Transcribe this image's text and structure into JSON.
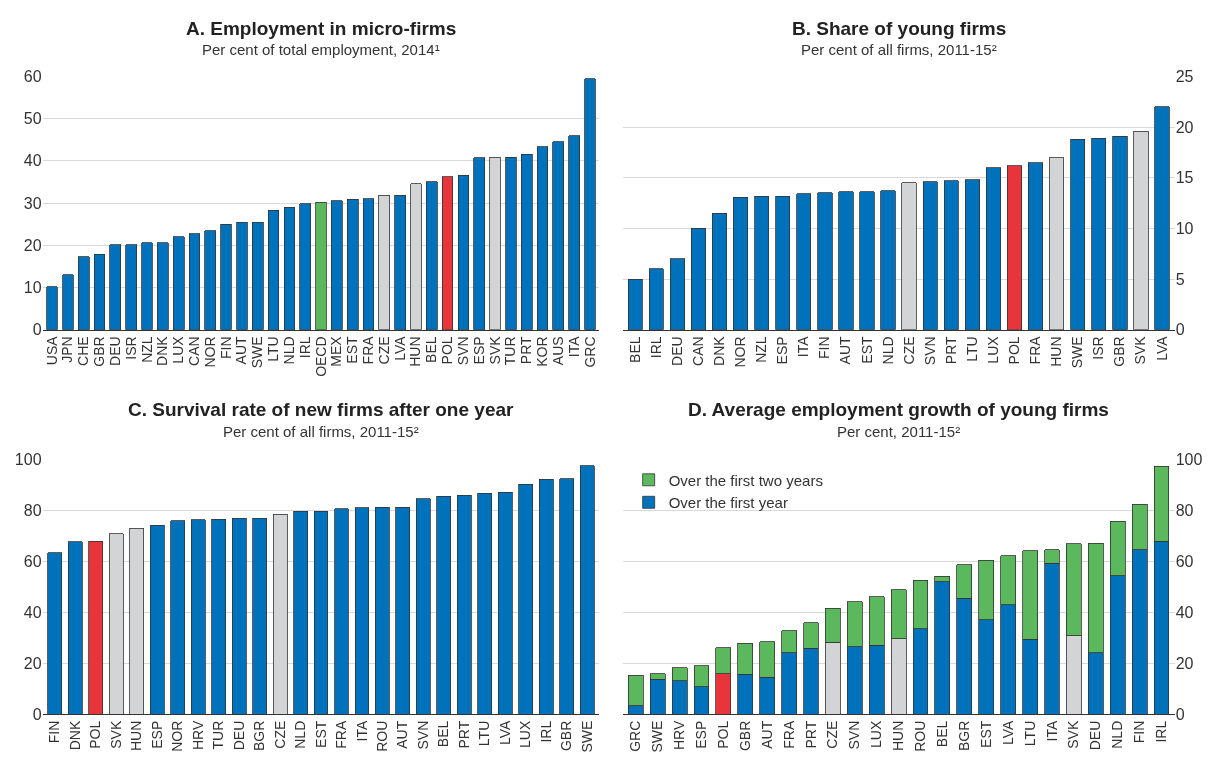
{
  "chart_data": [
    {
      "type": "bar",
      "title": "A. Employment in micro-firms",
      "subtitle": "Per cent of total employment, 2014¹",
      "categories": [
        "USA",
        "JPN",
        "CHE",
        "GBR",
        "DEU",
        "ISR",
        "NZL",
        "DNK",
        "LUX",
        "CAN",
        "NOR",
        "FIN",
        "AUT",
        "SWE",
        "LTU",
        "NLD",
        "IRL",
        "OECD",
        "MEX",
        "EST",
        "FRA",
        "CZE",
        "LVA",
        "HUN",
        "BEL",
        "POL",
        "SVN",
        "ESP",
        "SVK",
        "TUR",
        "PRT",
        "KOR",
        "AUS",
        "ITA",
        "GRC"
      ],
      "values": [
        10.2,
        13,
        17.3,
        17.9,
        20.1,
        20.1,
        20.6,
        20.6,
        22,
        22.7,
        23.4,
        25,
        25.5,
        25.5,
        28.3,
        29,
        29.8,
        30.2,
        30.6,
        30.9,
        31,
        31.8,
        31.8,
        34.6,
        35,
        36.2,
        36.6,
        40.7,
        40.9,
        40.9,
        41.6,
        43.4,
        44.5,
        45.9,
        59.4
      ],
      "colors": [
        "#0072bb",
        "#0072bb",
        "#0072bb",
        "#0072bb",
        "#0072bb",
        "#0072bb",
        "#0072bb",
        "#0072bb",
        "#0072bb",
        "#0072bb",
        "#0072bb",
        "#0072bb",
        "#0072bb",
        "#0072bb",
        "#0072bb",
        "#0072bb",
        "#0072bb",
        "#5cb85c",
        "#0072bb",
        "#0072bb",
        "#0072bb",
        "#d3d4d6",
        "#0072bb",
        "#d3d4d6",
        "#0072bb",
        "#e8353b",
        "#0072bb",
        "#0072bb",
        "#d3d4d6",
        "#0072bb",
        "#0072bb",
        "#0072bb",
        "#0072bb",
        "#0072bb",
        "#0072bb"
      ],
      "ylim": [
        0,
        60
      ],
      "yticks": [
        0,
        10,
        20,
        30,
        40,
        50,
        60
      ],
      "grid": "y",
      "legend": false
    },
    {
      "type": "bar",
      "title": "B. Share of young firms",
      "subtitle": "Per cent of all firms, 2011-15²",
      "categories": [
        "BEL",
        "IRL",
        "DEU",
        "CAN",
        "DNK",
        "NOR",
        "NZL",
        "ESP",
        "ITA",
        "FIN",
        "AUT",
        "EST",
        "NLD",
        "CZE",
        "SVN",
        "PRT",
        "LTU",
        "LUX",
        "POL",
        "FRA",
        "HUN",
        "SWE",
        "ISR",
        "GBR",
        "SVK",
        "LVA"
      ],
      "values": [
        5,
        6,
        7,
        10,
        11.5,
        13.1,
        13.2,
        13.2,
        13.4,
        13.5,
        13.6,
        13.6,
        13.7,
        14.5,
        14.6,
        14.7,
        14.8,
        16,
        16.2,
        16.5,
        17,
        18.8,
        18.9,
        19.1,
        19.6,
        22
      ],
      "colors": [
        "#0072bb",
        "#0072bb",
        "#0072bb",
        "#0072bb",
        "#0072bb",
        "#0072bb",
        "#0072bb",
        "#0072bb",
        "#0072bb",
        "#0072bb",
        "#0072bb",
        "#0072bb",
        "#0072bb",
        "#d3d4d6",
        "#0072bb",
        "#0072bb",
        "#0072bb",
        "#0072bb",
        "#e8353b",
        "#0072bb",
        "#d3d4d6",
        "#0072bb",
        "#0072bb",
        "#0072bb",
        "#d3d4d6",
        "#0072bb"
      ],
      "ylim": [
        0,
        25
      ],
      "yticks": [
        0,
        5,
        10,
        15,
        20,
        25
      ],
      "grid": "y",
      "legend": false
    },
    {
      "type": "bar",
      "title": "C. Survival rate of new firms after one year",
      "subtitle": "Per cent of all firms, 2011-15²",
      "categories": [
        "FIN",
        "DNK",
        "POL",
        "SVK",
        "HUN",
        "ESP",
        "NOR",
        "HRV",
        "TUR",
        "DEU",
        "BGR",
        "CZE",
        "NLD",
        "EST",
        "FRA",
        "ITA",
        "ROU",
        "AUT",
        "SVN",
        "BEL",
        "PRT",
        "LTU",
        "LVA",
        "LUX",
        "IRL",
        "GBR",
        "SWE"
      ],
      "values": [
        63.5,
        67.8,
        68,
        71,
        73,
        74.3,
        76,
        76.5,
        76.7,
        77,
        77,
        78.5,
        79.7,
        79.7,
        80.7,
        81.2,
        81.4,
        81.4,
        84.6,
        85.6,
        86,
        86.8,
        87.2,
        90.4,
        92.3,
        92.6,
        97.7
      ],
      "colors": [
        "#0072bb",
        "#0072bb",
        "#e8353b",
        "#d3d4d6",
        "#d3d4d6",
        "#0072bb",
        "#0072bb",
        "#0072bb",
        "#0072bb",
        "#0072bb",
        "#0072bb",
        "#d3d4d6",
        "#0072bb",
        "#0072bb",
        "#0072bb",
        "#0072bb",
        "#0072bb",
        "#0072bb",
        "#0072bb",
        "#0072bb",
        "#0072bb",
        "#0072bb",
        "#0072bb",
        "#0072bb",
        "#0072bb",
        "#0072bb",
        "#0072bb"
      ],
      "ylim": [
        0,
        100
      ],
      "yticks": [
        0,
        20,
        40,
        60,
        80,
        100
      ],
      "grid": "y",
      "legend": false
    },
    {
      "type": "bar",
      "title": "D. Average employment growth of young firms",
      "subtitle": "Per cent, 2011-15²",
      "stacked": true,
      "categories": [
        "GRC",
        "SWE",
        "HRV",
        "ESP",
        "POL",
        "GBR",
        "AUT",
        "FRA",
        "PRT",
        "CZE",
        "SVN",
        "LUX",
        "HUN",
        "ROU",
        "BEL",
        "BGR",
        "EST",
        "LVA",
        "LTU",
        "ITA",
        "SVK",
        "DEU",
        "NLD",
        "FIN",
        "IRL"
      ],
      "series": [
        {
          "name": "Over the first year",
          "color": "#0072bb",
          "values": [
            3.3,
            13.6,
            13,
            10.8,
            15.8,
            15.6,
            14.4,
            24.1,
            25.8,
            28.3,
            26.4,
            27,
            29.7,
            33.6,
            52,
            45.5,
            37,
            42.9,
            29.5,
            59.4,
            30.8,
            24.1,
            54.4,
            64.7,
            68
          ],
          "colors": [
            null,
            null,
            null,
            null,
            "#e8353b",
            null,
            null,
            null,
            null,
            "#d3d4d6",
            null,
            null,
            "#d3d4d6",
            null,
            null,
            null,
            null,
            null,
            null,
            null,
            "#d3d4d6",
            null,
            null,
            null,
            null
          ]
        },
        {
          "name": "Over the first two years",
          "color": "#5cb85c",
          "values": [
            11.9,
            2.2,
            5.3,
            8.1,
            10.3,
            12.3,
            14.1,
            8.6,
            10.1,
            13.4,
            17.8,
            19.1,
            19.2,
            19,
            2.1,
            13.3,
            23.5,
            19.4,
            34.7,
            5.3,
            36.2,
            43,
            21.4,
            17.9,
            29.4
          ]
        }
      ],
      "ylim": [
        0,
        100
      ],
      "yticks": [
        0,
        20,
        40,
        60,
        80,
        100
      ],
      "grid": "y",
      "legend": "top left"
    }
  ]
}
